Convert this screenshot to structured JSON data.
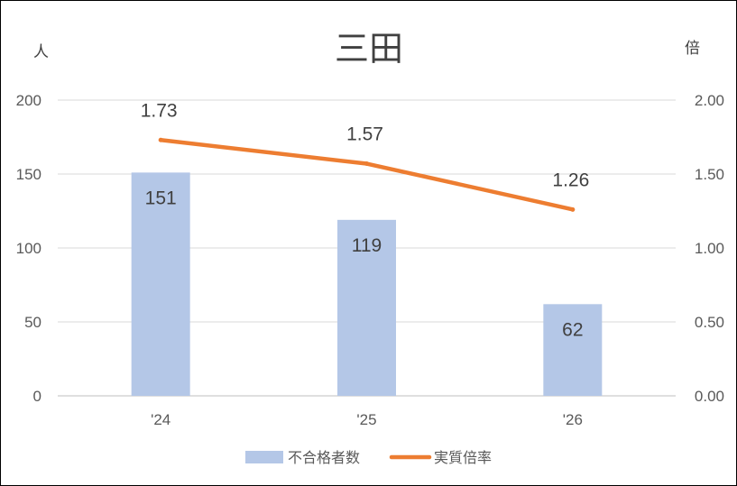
{
  "chart_data": {
    "type": "bar",
    "title": "三田",
    "categories": [
      "'24",
      "'25",
      "'26"
    ],
    "y_left": {
      "unit_label": "人",
      "range": [
        0,
        200
      ],
      "ticks": [
        "0",
        "50",
        "100",
        "150",
        "200"
      ]
    },
    "y_right": {
      "unit_label": "倍",
      "range": [
        0,
        2
      ],
      "ticks": [
        "0.00",
        "0.50",
        "1.00",
        "1.50",
        "2.00"
      ]
    },
    "series": [
      {
        "name": "不合格者数",
        "kind": "bar",
        "axis": "left",
        "color": "#b4c7e7",
        "values": [
          151,
          119,
          62
        ],
        "labels": [
          "151",
          "119",
          "62"
        ]
      },
      {
        "name": "実質倍率",
        "kind": "line",
        "axis": "right",
        "color": "#ed7d31",
        "values": [
          1.73,
          1.57,
          1.26
        ],
        "labels": [
          "1.73",
          "1.57",
          "1.26"
        ]
      }
    ],
    "grid": true,
    "legend_position": "bottom"
  }
}
